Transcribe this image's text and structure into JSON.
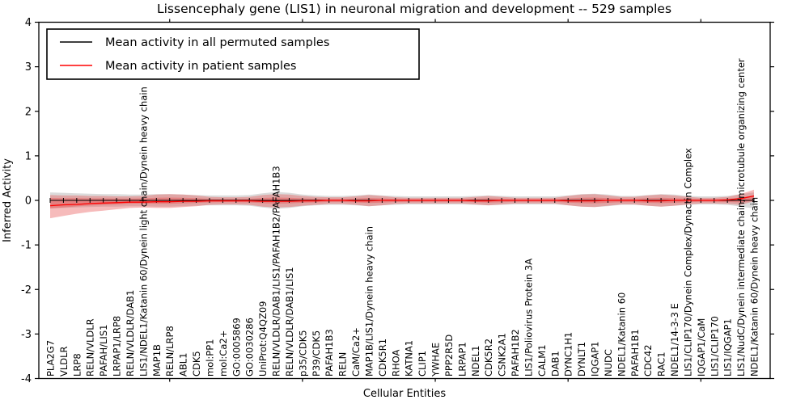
{
  "chart_data": {
    "type": "line",
    "title": "Lissencephaly gene (LIS1) in neuronal migration and development -- 529 samples",
    "xlabel": "Cellular Entities",
    "ylabel": "Inferred Activity",
    "ylim": [
      -4,
      4
    ],
    "yticks": [
      4,
      3,
      2,
      1,
      0,
      -1,
      -2,
      -3,
      -4
    ],
    "grid": false,
    "legend": {
      "position": "upper left",
      "entries": [
        {
          "label": "Mean activity in all permuted samples",
          "color": "#000000"
        },
        {
          "label": "Mean activity in patient samples",
          "color": "#ff0000"
        }
      ]
    },
    "band_colors": {
      "permuted": "#999999",
      "patient": "#e85555"
    },
    "categories": [
      "PLA2G7",
      "VLDLR",
      "LRP8",
      "RELN/VLDLR",
      "PAFAH/LIS1",
      "LRPAP1/LRP8",
      "RELN/VLDLR/DAB1",
      "LIS1/NDEL1/Katanin 60/Dynein light chain/Dynein heavy chain",
      "MAP1B",
      "RELN/LRP8",
      "ABL1",
      "CDK5",
      "mol:PP1",
      "mol:Ca2+",
      "GO:0005869",
      "GO:0030286",
      "UniProt:Q4QZ09",
      "RELN/VLDLR/DAB1/LIS1/PAFAH1B2/PAFAH1B3",
      "RELN/VLDLR/DAB1/LIS1",
      "p35/CDK5",
      "P39/CDK5",
      "PAFAH1B3",
      "RELN",
      "CaM/Ca2+",
      "MAP1B/LIS1/Dynein heavy chain",
      "CDK5R1",
      "RHOA",
      "KATNA1",
      "CLIP1",
      "YWHAE",
      "PPP2R5D",
      "LRPAP1",
      "NDEL1",
      "CDK5R2",
      "CSNK2A1",
      "PAFAH1B2",
      "LIS1/Poliovirus Protein 3A",
      "CALM1",
      "DAB1",
      "DYNC1H1",
      "DYNLT1",
      "IQGAP1",
      "NUDC",
      "NDEL1/Katanin 60",
      "PAFAH1B1",
      "CDC42",
      "RAC1",
      "NDEL1/14-3-3 E",
      "LIS1/CLIP170/Dynein Complex/Dynactin Complex",
      "IQGAP1/CaM",
      "LIS1/CLIP170",
      "LIS1/IQGAP1",
      "LIS1/NudC/Dynein intermediate chain/microtubule organizing center",
      "NDEL1/Katanin 60/Dynein heavy chain"
    ],
    "series": [
      {
        "name": "Mean activity in all permuted samples",
        "color": "#000000",
        "values": [
          0,
          0,
          0,
          0,
          0,
          0,
          0,
          0,
          0,
          0,
          0,
          0,
          0,
          0,
          0,
          0,
          0,
          0,
          0,
          0,
          0,
          0,
          0,
          0,
          0,
          0,
          0,
          0,
          0,
          0,
          0,
          0,
          0,
          0,
          0,
          0,
          0,
          0,
          0,
          0,
          0,
          0,
          0,
          0,
          0,
          0,
          0,
          0,
          0,
          0,
          0,
          0,
          0,
          0
        ],
        "band_upper": [
          0.18,
          0.17,
          0.16,
          0.15,
          0.14,
          0.14,
          0.13,
          0.13,
          0.14,
          0.14,
          0.13,
          0.12,
          0.11,
          0.11,
          0.11,
          0.12,
          0.16,
          0.19,
          0.17,
          0.13,
          0.11,
          0.1,
          0.1,
          0.11,
          0.13,
          0.11,
          0.1,
          0.09,
          0.09,
          0.09,
          0.09,
          0.09,
          0.1,
          0.11,
          0.1,
          0.09,
          0.09,
          0.09,
          0.09,
          0.11,
          0.14,
          0.15,
          0.13,
          0.1,
          0.1,
          0.12,
          0.14,
          0.13,
          0.1,
          0.09,
          0.09,
          0.1,
          0.14,
          0.18
        ],
        "band_lower": [
          -0.18,
          -0.17,
          -0.16,
          -0.15,
          -0.14,
          -0.14,
          -0.13,
          -0.13,
          -0.14,
          -0.14,
          -0.13,
          -0.12,
          -0.11,
          -0.11,
          -0.11,
          -0.12,
          -0.16,
          -0.19,
          -0.17,
          -0.13,
          -0.11,
          -0.1,
          -0.1,
          -0.11,
          -0.13,
          -0.11,
          -0.1,
          -0.09,
          -0.09,
          -0.09,
          -0.09,
          -0.09,
          -0.1,
          -0.11,
          -0.1,
          -0.09,
          -0.09,
          -0.09,
          -0.09,
          -0.11,
          -0.14,
          -0.15,
          -0.13,
          -0.1,
          -0.1,
          -0.12,
          -0.14,
          -0.12,
          -0.1,
          -0.09,
          -0.09,
          -0.1,
          -0.14,
          -0.18
        ]
      },
      {
        "name": "Mean activity in patient samples",
        "color": "#ff0000",
        "values": [
          -0.12,
          -0.1,
          -0.09,
          -0.07,
          -0.06,
          -0.05,
          -0.04,
          -0.04,
          -0.03,
          -0.03,
          -0.02,
          -0.02,
          -0.01,
          -0.01,
          -0.01,
          -0.01,
          -0.02,
          -0.02,
          -0.02,
          -0.01,
          -0.01,
          0,
          0,
          -0.01,
          -0.01,
          0,
          0,
          0,
          0,
          0,
          0,
          0,
          -0.01,
          -0.01,
          0,
          0,
          0,
          0,
          0,
          -0.01,
          -0.01,
          -0.01,
          0,
          0,
          0,
          -0.01,
          -0.01,
          0,
          0,
          0,
          0,
          0.01,
          0.04,
          0.1
        ],
        "band_upper": [
          0.12,
          0.11,
          0.11,
          0.1,
          0.1,
          0.09,
          0.09,
          0.1,
          0.13,
          0.14,
          0.13,
          0.11,
          0.08,
          0.07,
          0.07,
          0.08,
          0.12,
          0.14,
          0.13,
          0.1,
          0.08,
          0.07,
          0.07,
          0.09,
          0.12,
          0.1,
          0.07,
          0.06,
          0.06,
          0.06,
          0.06,
          0.06,
          0.08,
          0.1,
          0.08,
          0.06,
          0.06,
          0.06,
          0.06,
          0.1,
          0.13,
          0.14,
          0.11,
          0.08,
          0.08,
          0.11,
          0.13,
          0.11,
          0.08,
          0.06,
          0.06,
          0.08,
          0.14,
          0.24
        ],
        "band_lower": [
          -0.4,
          -0.35,
          -0.3,
          -0.26,
          -0.23,
          -0.2,
          -0.17,
          -0.16,
          -0.17,
          -0.17,
          -0.15,
          -0.13,
          -0.1,
          -0.09,
          -0.09,
          -0.1,
          -0.14,
          -0.16,
          -0.15,
          -0.12,
          -0.1,
          -0.08,
          -0.08,
          -0.1,
          -0.13,
          -0.11,
          -0.08,
          -0.07,
          -0.07,
          -0.07,
          -0.07,
          -0.07,
          -0.09,
          -0.11,
          -0.09,
          -0.07,
          -0.07,
          -0.07,
          -0.07,
          -0.11,
          -0.14,
          -0.15,
          -0.12,
          -0.09,
          -0.09,
          -0.12,
          -0.14,
          -0.12,
          -0.09,
          -0.07,
          -0.07,
          -0.08,
          -0.1,
          -0.02
        ]
      }
    ]
  }
}
